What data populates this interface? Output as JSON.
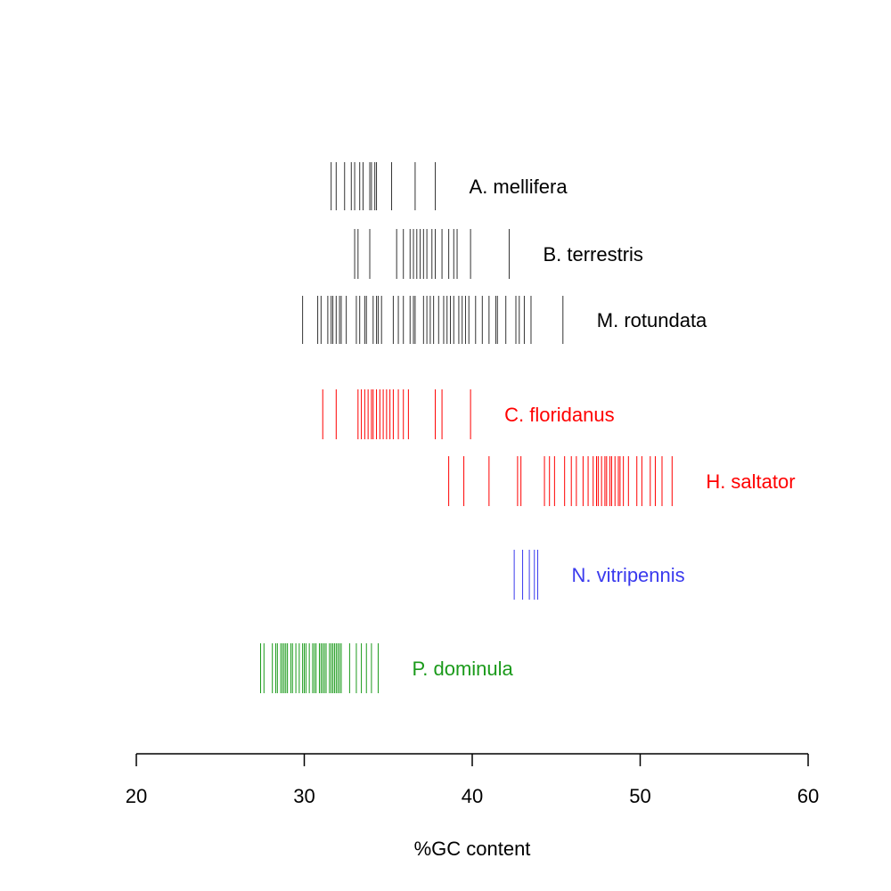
{
  "chart_data": {
    "type": "strip",
    "title": "",
    "xlabel": "%GC content",
    "ylabel": "",
    "xlim": [
      20,
      60
    ],
    "xticks": [
      20,
      30,
      40,
      50,
      60
    ],
    "tick_labels": [
      "20",
      "30",
      "40",
      "50",
      "60"
    ],
    "grid": false,
    "series": [
      {
        "name": "A. mellifera",
        "color": "#333333",
        "values": [
          31.6,
          31.9,
          32.4,
          32.8,
          33.0,
          33.3,
          33.5,
          33.9,
          34.0,
          34.2,
          34.3,
          35.2,
          36.6,
          37.8
        ]
      },
      {
        "name": "B. terrestris",
        "color": "#333333",
        "values": [
          33.0,
          33.2,
          33.9,
          35.5,
          35.9,
          36.3,
          36.5,
          36.7,
          36.9,
          37.1,
          37.3,
          37.6,
          37.8,
          38.2,
          38.6,
          38.9,
          39.1,
          39.9,
          42.2
        ]
      },
      {
        "name": "M. rotundata",
        "color": "#333333",
        "values": [
          29.9,
          30.8,
          31.0,
          31.4,
          31.6,
          31.7,
          31.9,
          32.1,
          32.2,
          32.5,
          33.1,
          33.3,
          33.6,
          33.7,
          34.1,
          34.3,
          34.4,
          34.6,
          35.3,
          35.6,
          35.9,
          36.3,
          36.5,
          36.6,
          37.1,
          37.3,
          37.5,
          37.7,
          38.0,
          38.3,
          38.5,
          38.7,
          38.9,
          39.2,
          39.4,
          39.6,
          39.8,
          40.2,
          40.6,
          41.0,
          41.4,
          41.5,
          42.0,
          42.6,
          42.8,
          43.1,
          43.5,
          45.4
        ]
      },
      {
        "name": "C. floridanus",
        "color": "#ff0000",
        "values": [
          31.1,
          31.9,
          33.2,
          33.4,
          33.6,
          33.8,
          34.0,
          34.1,
          34.3,
          34.5,
          34.7,
          34.9,
          35.1,
          35.3,
          35.6,
          35.9,
          36.2,
          37.8,
          38.2,
          39.9
        ]
      },
      {
        "name": "H. saltator",
        "color": "#ff0000",
        "values": [
          38.6,
          39.5,
          41.0,
          42.7,
          42.9,
          44.3,
          44.6,
          44.9,
          45.5,
          45.9,
          46.2,
          46.6,
          46.9,
          47.2,
          47.4,
          47.5,
          47.7,
          47.9,
          48.0,
          48.2,
          48.3,
          48.5,
          48.7,
          48.8,
          49.0,
          49.3,
          49.8,
          50.1,
          50.6,
          50.9,
          51.3,
          51.9
        ]
      },
      {
        "name": "N. vitripennis",
        "color": "#3a3aee",
        "values": [
          42.5,
          43.0,
          43.4,
          43.7,
          43.9
        ]
      },
      {
        "name": "P. dominula",
        "color": "#1a9a1a",
        "values": [
          27.4,
          27.6,
          28.1,
          28.3,
          28.4,
          28.6,
          28.7,
          28.8,
          28.9,
          29.0,
          29.2,
          29.3,
          29.5,
          29.7,
          29.9,
          30.0,
          30.1,
          30.3,
          30.5,
          30.6,
          30.7,
          30.9,
          31.0,
          31.1,
          31.2,
          31.3,
          31.5,
          31.6,
          31.7,
          31.8,
          31.9,
          32.0,
          32.1,
          32.2,
          32.7,
          33.1,
          33.4,
          33.7,
          34.0,
          34.4
        ]
      }
    ]
  }
}
